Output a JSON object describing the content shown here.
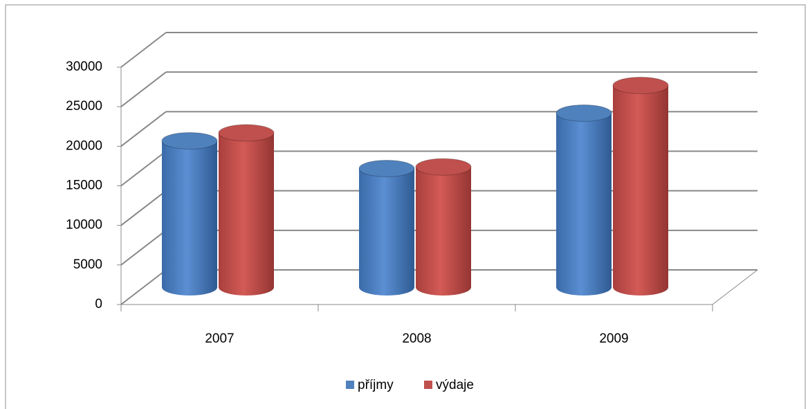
{
  "chart_data": {
    "type": "bar3d",
    "categories": [
      "2007",
      "2008",
      "2009"
    ],
    "series": [
      {
        "name": "příjmy",
        "color": "#4f81bd",
        "values": [
          18500,
          15000,
          22000
        ]
      },
      {
        "name": "výdaje",
        "color": "#c0504d",
        "values": [
          19500,
          15200,
          25500
        ]
      }
    ],
    "ylim": [
      0,
      30000
    ],
    "yticks": [
      0,
      5000,
      10000,
      15000,
      20000,
      25000,
      30000
    ],
    "grid": true,
    "legend": "bottom"
  }
}
